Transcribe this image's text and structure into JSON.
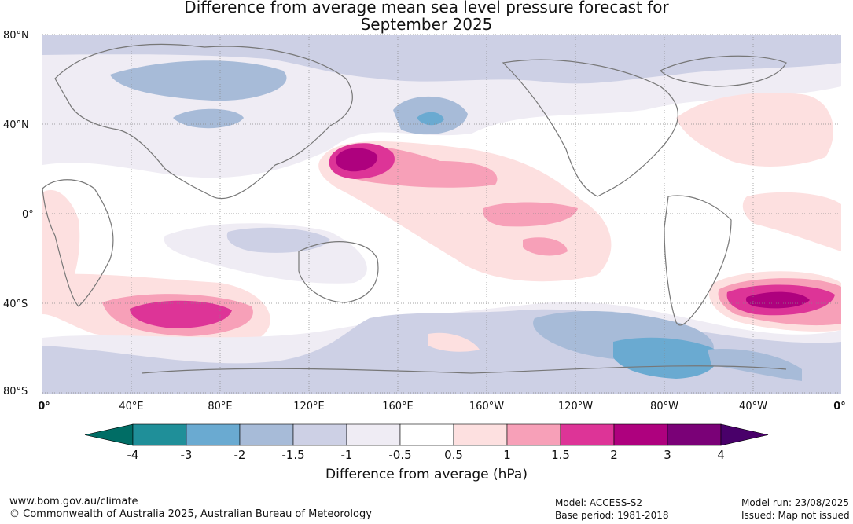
{
  "title_line1": "Difference from average mean sea level pressure forecast for",
  "title_line2": "September 2025",
  "lat_labels": [
    "80°N",
    "40°N",
    "0°",
    "40°S",
    "80°S"
  ],
  "lon_labels": [
    "0°",
    "40°E",
    "80°E",
    "120°E",
    "160°E",
    "160°W",
    "120°W",
    "80°W",
    "40°W",
    "0°"
  ],
  "colorbar": {
    "ticks": [
      "-4",
      "-3",
      "-2",
      "-1.5",
      "-1",
      "-0.5",
      "0.5",
      "1",
      "1.5",
      "2",
      "3",
      "4"
    ],
    "colors": [
      "#1f8f99",
      "#6aaad1",
      "#a7bbd8",
      "#cdd0e5",
      "#efecf4",
      "#ffffff",
      "#fde0e0",
      "#f7a0b8",
      "#dd3497",
      "#ae017e",
      "#7a0177"
    ],
    "under_color": "#006d65",
    "over_color": "#49006a",
    "label": "Difference from average (hPa)"
  },
  "footer": {
    "url": "www.bom.gov.au/climate",
    "copyright": "© Commonwealth of Australia 2025, Australian Bureau of Meteorology",
    "model": "Model: ACCESS-S2",
    "base_period": "Base period: 1981-2018",
    "model_run": "Model run: 23/08/2025",
    "issued": "Issued: Map not issued"
  }
}
